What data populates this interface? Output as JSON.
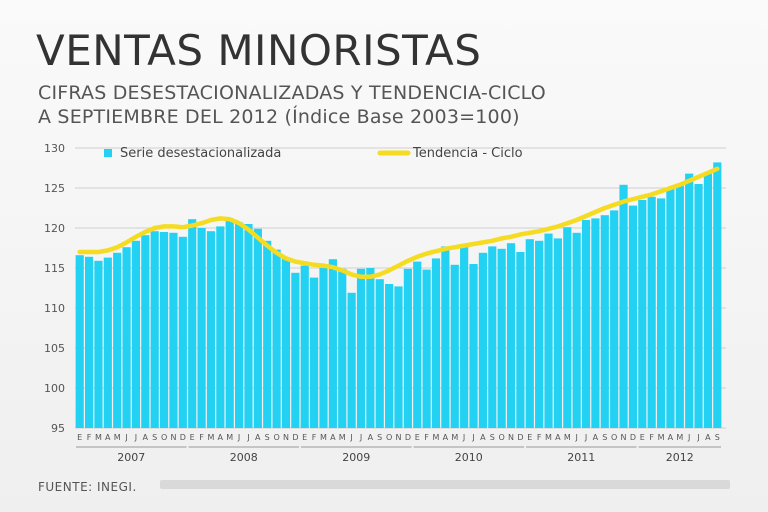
{
  "chart_data": {
    "type": "bar",
    "title": "VENTAS MINORISTAS",
    "subtitle_line1": "CIFRAS DESESTACIONALIZADAS Y TENDENCIA-CICLO",
    "subtitle_line2": "A SEPTIEMBRE DEL 2012 (Índice Base 2003=100)",
    "ylim": [
      95,
      130
    ],
    "yticks": [
      95,
      100,
      105,
      110,
      115,
      120,
      125,
      130
    ],
    "colors": {
      "bars": "#23d2f2",
      "trend": "#f5dc22",
      "grid": "#cfcfcf"
    },
    "legend": {
      "bars_label": "Serie desestacionalizada",
      "trend_label": "Tendencia - Ciclo",
      "placement": "top"
    },
    "month_labels": [
      "E",
      "F",
      "M",
      "A",
      "M",
      "J",
      "J",
      "A",
      "S",
      "O",
      "N",
      "D"
    ],
    "years": [
      {
        "label": "2007",
        "months": 12
      },
      {
        "label": "2008",
        "months": 12
      },
      {
        "label": "2009",
        "months": 12
      },
      {
        "label": "2010",
        "months": 12
      },
      {
        "label": "2011",
        "months": 12
      },
      {
        "label": "2012",
        "months": 9
      }
    ],
    "series": [
      {
        "name": "Serie desestacionalizada",
        "values": [
          116.6,
          116.4,
          115.9,
          116.3,
          116.9,
          117.6,
          118.4,
          119.1,
          119.6,
          119.5,
          119.4,
          118.9,
          121.1,
          120.0,
          119.6,
          120.2,
          120.9,
          120.7,
          120.5,
          119.9,
          118.4,
          117.3,
          116.2,
          114.4,
          115.3,
          113.8,
          115.0,
          116.1,
          114.9,
          111.9,
          114.9,
          115.0,
          113.6,
          113.0,
          112.7,
          114.9,
          115.8,
          114.8,
          116.2,
          117.7,
          115.4,
          118.0,
          115.5,
          116.9,
          117.7,
          117.4,
          118.1,
          117.0,
          118.6,
          118.4,
          119.3,
          118.7,
          120.1,
          119.4,
          121.0,
          121.2,
          121.6,
          122.2,
          125.4,
          122.8,
          123.5,
          123.9,
          123.7,
          125.0,
          125.3,
          126.8,
          125.5,
          126.8,
          128.2
        ]
      },
      {
        "name": "Tendencia - Ciclo",
        "values": [
          117.0,
          117.0,
          117.0,
          117.2,
          117.6,
          118.2,
          118.9,
          119.5,
          120.0,
          120.2,
          120.2,
          120.1,
          120.3,
          120.6,
          121.0,
          121.2,
          121.1,
          120.6,
          119.8,
          118.8,
          117.8,
          116.9,
          116.2,
          115.8,
          115.6,
          115.4,
          115.3,
          115.1,
          114.7,
          114.2,
          113.9,
          113.9,
          114.2,
          114.7,
          115.3,
          115.9,
          116.4,
          116.8,
          117.1,
          117.4,
          117.6,
          117.8,
          118.0,
          118.2,
          118.4,
          118.7,
          118.9,
          119.2,
          119.4,
          119.6,
          119.9,
          120.2,
          120.6,
          121.0,
          121.5,
          122.0,
          122.5,
          122.9,
          123.3,
          123.6,
          123.9,
          124.2,
          124.6,
          125.0,
          125.4,
          125.9,
          126.4,
          126.9,
          127.4
        ]
      }
    ]
  },
  "footer": {
    "source": "FUENTE: INEGI."
  }
}
